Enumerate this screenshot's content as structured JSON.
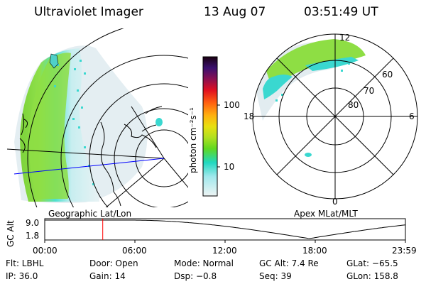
{
  "header": {
    "instrument": "Ultraviolet Imager",
    "date": "13 Aug 07",
    "time": "03:51:49 UT"
  },
  "colorbar": {
    "unit_label": "photon cm⁻²s⁻¹",
    "ticks": [
      "100",
      "10"
    ]
  },
  "panels": {
    "left_label": "Geographic Lat/Lon",
    "right_label": "Apex MLat/MLT"
  },
  "polar": {
    "mlt_labels": [
      "12",
      "6",
      "0",
      "18"
    ],
    "lat_labels": [
      "60",
      "70",
      "80"
    ]
  },
  "timeline": {
    "ylabel": "GC Alt",
    "yticks": [
      "9.0",
      "1.8"
    ],
    "xticks": [
      "00:00",
      "06:00",
      "12:00",
      "18:00",
      "23:59"
    ],
    "marker_time_hours": 3.86
  },
  "info": {
    "flt": "Flt: LBHL",
    "ip": "IP: 36.0",
    "door": "Door: Open",
    "gain": "Gain: 14",
    "mode": "Mode: Normal",
    "dsp": "Dsp:  −0.8",
    "gcalt": "GC Alt: 7.4 Re",
    "seq": "Seq: 39",
    "glat": "GLat: −65.5",
    "glon": "GLon: 158.8"
  },
  "colors": {
    "marker": "#ff0000",
    "meridian": "#0000ff"
  }
}
